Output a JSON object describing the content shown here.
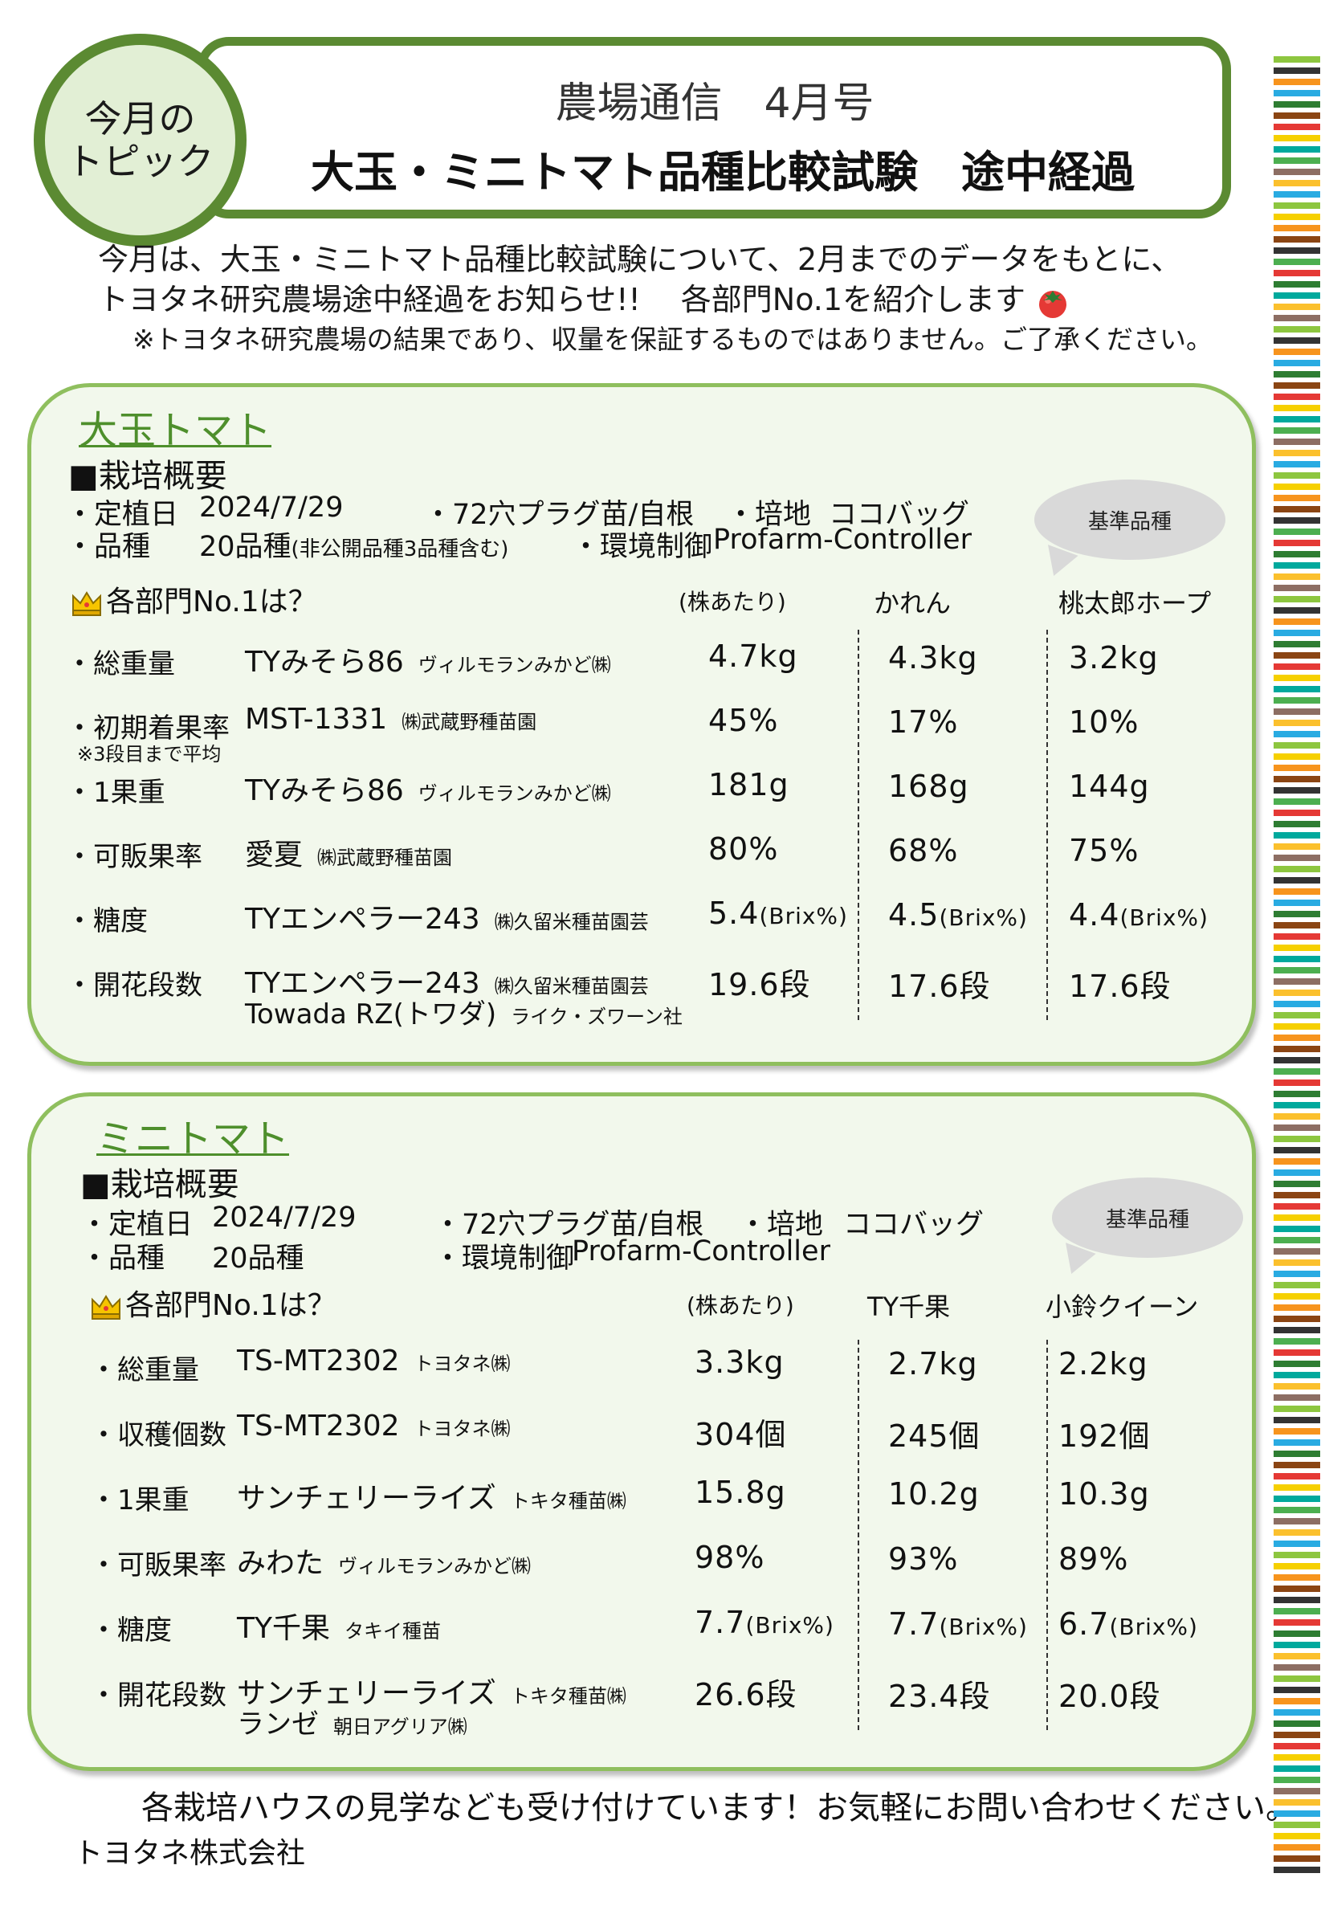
{
  "header": {
    "topic_line1": "今月の",
    "topic_line2": "トピック",
    "title_line1": "農場通信　4月号",
    "title_line2": "大玉・ミニトマト品種比較試験　途中経過"
  },
  "intro": {
    "line1": "今月は、大玉・ミニトマト品種比較試験について、2月までのデータをもとに、",
    "line2": "トヨタネ研究農場途中経過をお知らせ!!　 各部門No.1を紹介します",
    "note": "※トヨタネ研究農場の結果であり、収量を保証するものではありません。ご了承ください。"
  },
  "large": {
    "title": "大玉トマト",
    "overview_heading": "■栽培概要",
    "planting_label": "・定植日",
    "planting_value": "2024/7/29",
    "seedling": "・72穴プラグ苗/自根",
    "medium_label": "・培地",
    "medium_value": "ココバッグ",
    "variety_label": "・品種",
    "variety_value": "20品種",
    "variety_note": "(非公開品種3品種含む)",
    "env_label": "・環境制御",
    "env_value": "Profarm-Controller",
    "bubble": "基準品種",
    "no1_heading": "各部門No.1は？",
    "col_per_plant": "(株あたり)",
    "col_ref1": "かれん",
    "col_ref2": "桃太郎ホープ",
    "rows": [
      {
        "label": "・総重量",
        "note": "",
        "variety": "TYみそら86",
        "company": "ヴィルモランみかど㈱",
        "variety2": "",
        "company2": "",
        "v1": "4.7kg",
        "v1u": "",
        "v2": "4.3kg",
        "v2u": "",
        "v3": "3.2kg",
        "v3u": ""
      },
      {
        "label": "・初期着果率",
        "note": "※3段目まで平均",
        "variety": "MST-1331",
        "company": "㈱武蔵野種苗園",
        "variety2": "",
        "company2": "",
        "v1": "45%",
        "v1u": "",
        "v2": "17%",
        "v2u": "",
        "v3": "10%",
        "v3u": ""
      },
      {
        "label": "・1果重",
        "note": "",
        "variety": "TYみそら86",
        "company": "ヴィルモランみかど㈱",
        "variety2": "",
        "company2": "",
        "v1": "181g",
        "v1u": "",
        "v2": "168g",
        "v2u": "",
        "v3": "144g",
        "v3u": ""
      },
      {
        "label": "・可販果率",
        "note": "",
        "variety": "愛夏",
        "company": "㈱武蔵野種苗園",
        "variety2": "",
        "company2": "",
        "v1": "80%",
        "v1u": "",
        "v2": "68%",
        "v2u": "",
        "v3": "75%",
        "v3u": ""
      },
      {
        "label": "・糖度",
        "note": "",
        "variety": "TYエンペラー243",
        "company": "㈱久留米種苗園芸",
        "variety2": "",
        "company2": "",
        "v1": "5.4",
        "v1u": "(Brix%)",
        "v2": "4.5",
        "v2u": "(Brix%)",
        "v3": "4.4",
        "v3u": "(Brix%)"
      },
      {
        "label": "・開花段数",
        "note": "",
        "variety": "TYエンペラー243",
        "company": "㈱久留米種苗園芸",
        "variety2": "Towada  RZ(トワダ)",
        "company2": "ライク・ズワーン社",
        "v1": "19.6段",
        "v1u": "",
        "v2": "17.6段",
        "v2u": "",
        "v3": "17.6段",
        "v3u": ""
      }
    ]
  },
  "mini": {
    "title": "ミニトマト",
    "overview_heading": "■栽培概要",
    "planting_label": "・定植日",
    "planting_value": "2024/7/29",
    "seedling": "・72穴プラグ苗/自根",
    "medium_label": "・培地",
    "medium_value": "ココバッグ",
    "variety_label": "・品種",
    "variety_value": "20品種",
    "env_label": "・環境制御",
    "env_value": "Profarm-Controller",
    "bubble": "基準品種",
    "no1_heading": "各部門No.1は？",
    "col_per_plant": "(株あたり)",
    "col_ref1": "TY千果",
    "col_ref2": "小鈴クイーン",
    "rows": [
      {
        "label": "・総重量",
        "variety": "TS-MT2302",
        "company": "トヨタネ㈱",
        "variety2": "",
        "company2": "",
        "v1": "3.3kg",
        "v1u": "",
        "v2": "2.7kg",
        "v2u": "",
        "v3": "2.2kg",
        "v3u": ""
      },
      {
        "label": "・収穫個数",
        "variety": "TS-MT2302",
        "company": "トヨタネ㈱",
        "variety2": "",
        "company2": "",
        "v1": "304個",
        "v1u": "",
        "v2": "245個",
        "v2u": "",
        "v3": "192個",
        "v3u": ""
      },
      {
        "label": "・1果重",
        "variety": "サンチェリーライズ",
        "company": "トキタ種苗㈱",
        "variety2": "",
        "company2": "",
        "v1": "15.8g",
        "v1u": "",
        "v2": "10.2g",
        "v2u": "",
        "v3": "10.3g",
        "v3u": ""
      },
      {
        "label": "・可販果率",
        "variety": "みわた",
        "company": "ヴィルモランみかど㈱",
        "variety2": "",
        "company2": "",
        "v1": "98%",
        "v1u": "",
        "v2": "93%",
        "v2u": "",
        "v3": "89%",
        "v3u": ""
      },
      {
        "label": "・糖度",
        "variety": "TY千果",
        "company": "タキイ種苗",
        "variety2": "",
        "company2": "",
        "v1": "7.7",
        "v1u": "(Brix%)",
        "v2": "7.7",
        "v2u": "(Brix%)",
        "v3": "6.7",
        "v3u": "(Brix%)"
      },
      {
        "label": "・開花段数",
        "variety": "サンチェリーライズ",
        "company": "トキタ種苗㈱",
        "variety2": "ランゼ",
        "company2": "朝日アグリア㈱",
        "v1": "26.6段",
        "v1u": "",
        "v2": "23.4段",
        "v2u": "",
        "v3": "20.0段",
        "v3u": ""
      }
    ]
  },
  "footer": {
    "line1": "各栽培ハウスの見学なども受け付けています！お気軽にお問い合わせください。",
    "company": "トヨタネ株式会社"
  },
  "colors": {
    "accent_green": "#5b8a32",
    "section_border": "#8fbf5e",
    "section_bg": "#f2f8ec",
    "title_green": "#4e8f2c",
    "stripe_palette": [
      "#8dc63f",
      "#333333",
      "#f7941d",
      "#29abe2",
      "#2e7d32",
      "#8b4513",
      "#e53935",
      "#f6d000",
      "#00a99d",
      "#4caf50",
      "#8d6e63",
      "#fbc02d"
    ]
  },
  "icons": [
    "topic-circle",
    "tomato-icon",
    "crown-icon",
    "speech-bubble"
  ]
}
